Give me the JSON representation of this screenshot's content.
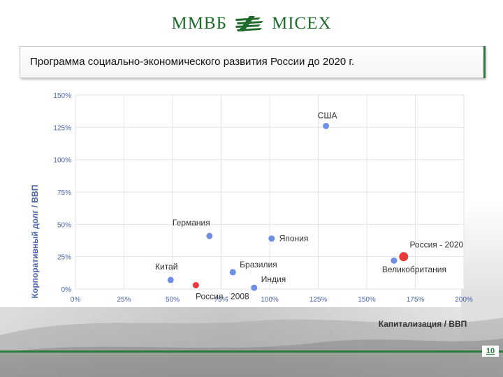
{
  "header": {
    "logo_left": "ММВБ",
    "logo_right": "MICEX",
    "logo_icon": "micex-logo-mark",
    "title": "Программа социально-экономического развития России до 2020 г."
  },
  "colors": {
    "accent_green": "#2c7a3c",
    "blue_point": "#6f8fe6",
    "red_point": "#ea3b3b"
  },
  "chart_data": {
    "type": "scatter",
    "title": "",
    "xlabel": "Капитализация / ВВП",
    "ylabel": "Корпоративный долг / ВВП",
    "xlim": [
      0,
      200
    ],
    "ylim": [
      0,
      150
    ],
    "x_ticks": [
      "0%",
      "25%",
      "50%",
      "75%",
      "100%",
      "125%",
      "150%",
      "175%",
      "200%"
    ],
    "y_ticks": [
      "0%",
      "25%",
      "50%",
      "75%",
      "100%",
      "125%",
      "150%"
    ],
    "grid": true,
    "points": [
      {
        "label": "США",
        "x": 129,
        "y": 126,
        "color": "#6f8fe6",
        "size": "small"
      },
      {
        "label": "Германия",
        "x": 69,
        "y": 41,
        "color": "#6f8fe6",
        "size": "small"
      },
      {
        "label": "Япония",
        "x": 101,
        "y": 39,
        "color": "#6f8fe6",
        "size": "small"
      },
      {
        "label": "Китай",
        "x": 49,
        "y": 7,
        "color": "#6f8fe6",
        "size": "small"
      },
      {
        "label": "Бразилия",
        "x": 81,
        "y": 13,
        "color": "#6f8fe6",
        "size": "small"
      },
      {
        "label": "Индия",
        "x": 92,
        "y": 1,
        "color": "#6f8fe6",
        "size": "small"
      },
      {
        "label": "Великобритания",
        "x": 164,
        "y": 22,
        "color": "#6f8fe6",
        "size": "small"
      },
      {
        "label": "Россия - 2008",
        "x": 62,
        "y": 3,
        "color": "#ea3b3b",
        "size": "small"
      },
      {
        "label": "Россия - 2020",
        "x": 169,
        "y": 25,
        "color": "#ea3b3b",
        "size": "large"
      }
    ]
  },
  "footer": {
    "page_number": "10"
  }
}
